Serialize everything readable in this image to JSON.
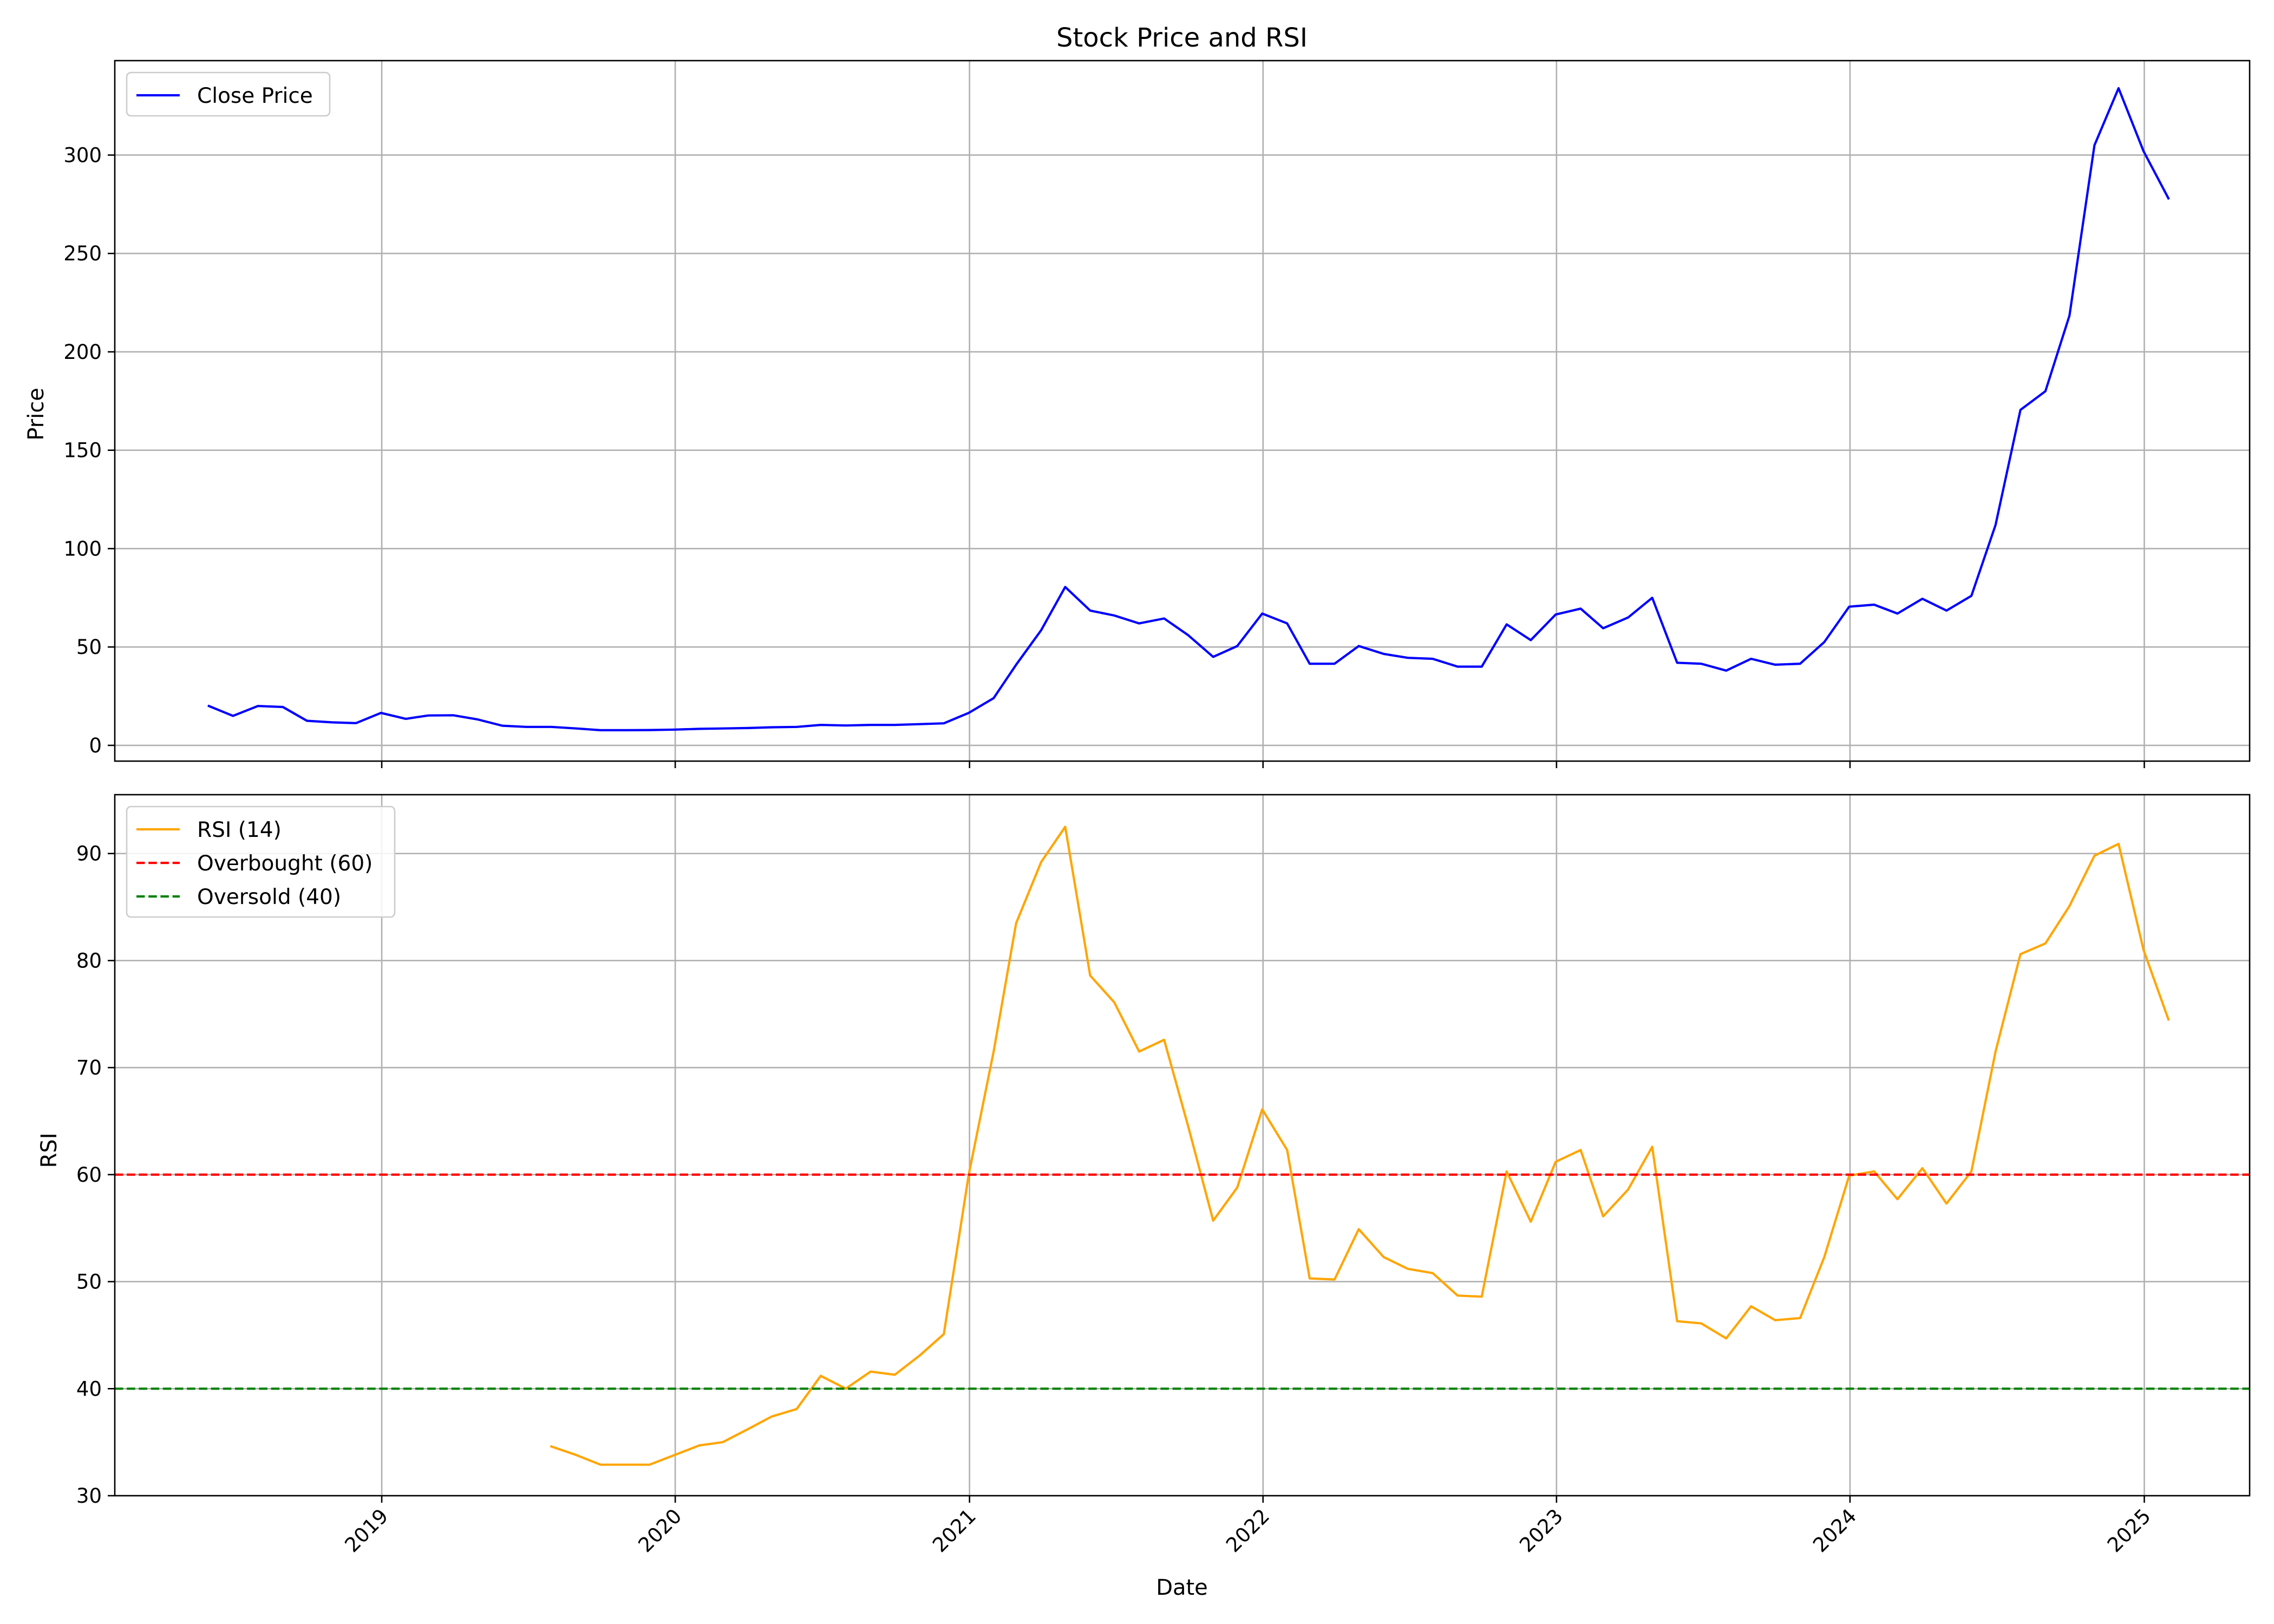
{
  "chart_data": [
    {
      "type": "line",
      "title": "Stock Price and RSI",
      "xlabel": "",
      "ylabel": "Price",
      "ylim": [
        -8,
        348
      ],
      "xlim": [
        "2018-02-03",
        "2025-05-12"
      ],
      "grid": true,
      "legend": "top-left",
      "yticks": [
        0,
        50,
        100,
        150,
        200,
        250,
        300
      ],
      "series": [
        {
          "name": "Close Price",
          "color": "#0000ff",
          "style": "solid",
          "x": [
            "2018-05-31",
            "2018-06-30",
            "2018-07-31",
            "2018-08-31",
            "2018-09-30",
            "2018-10-31",
            "2018-11-30",
            "2018-12-31",
            "2019-01-31",
            "2019-02-28",
            "2019-03-31",
            "2019-04-30",
            "2019-05-31",
            "2019-06-30",
            "2019-07-31",
            "2019-08-31",
            "2019-09-30",
            "2019-10-31",
            "2019-11-30",
            "2019-12-31",
            "2020-01-31",
            "2020-02-29",
            "2020-03-31",
            "2020-04-30",
            "2020-05-31",
            "2020-06-30",
            "2020-07-31",
            "2020-08-31",
            "2020-09-30",
            "2020-10-31",
            "2020-11-30",
            "2020-12-31",
            "2021-01-31",
            "2021-02-28",
            "2021-03-31",
            "2021-04-30",
            "2021-05-31",
            "2021-06-30",
            "2021-07-31",
            "2021-08-31",
            "2021-09-30",
            "2021-10-31",
            "2021-11-30",
            "2021-12-31",
            "2022-01-31",
            "2022-02-28",
            "2022-03-31",
            "2022-04-30",
            "2022-05-31",
            "2022-06-30",
            "2022-07-31",
            "2022-08-31",
            "2022-09-30",
            "2022-10-31",
            "2022-11-30",
            "2022-12-31",
            "2023-01-31",
            "2023-02-28",
            "2023-03-31",
            "2023-04-30",
            "2023-05-31",
            "2023-06-30",
            "2023-07-31",
            "2023-08-31",
            "2023-09-30",
            "2023-10-31",
            "2023-11-30",
            "2023-12-31",
            "2024-01-31",
            "2024-02-29",
            "2024-03-31",
            "2024-04-30",
            "2024-05-31",
            "2024-06-30",
            "2024-07-31",
            "2024-08-31",
            "2024-09-30",
            "2024-10-31",
            "2024-11-30",
            "2024-12-31",
            "2025-01-31"
          ],
          "values": [
            20,
            15,
            20,
            19.5,
            12.5,
            11.7,
            11.3,
            16.5,
            13.5,
            15.2,
            15.3,
            13.2,
            10,
            9.4,
            9.4,
            8.6,
            7.7,
            7.7,
            7.8,
            8,
            8.4,
            8.6,
            8.8,
            9.2,
            9.4,
            10.4,
            10.1,
            10.4,
            10.4,
            10.8,
            11.2,
            16.5,
            24,
            41,
            58.5,
            80.5,
            68.5,
            66,
            62,
            64.5,
            56,
            45,
            50.5,
            67,
            62,
            41.5,
            41.5,
            50.5,
            46.5,
            44.5,
            44,
            40,
            40,
            61.5,
            53.5,
            66.5,
            69.5,
            59.5,
            65,
            75,
            42,
            41.5,
            38,
            44,
            41,
            41.5,
            52.5,
            70.5,
            71.5,
            67,
            74.5,
            68.5,
            76,
            112,
            170.5,
            180,
            218.5,
            305,
            334,
            302,
            278
          ]
        }
      ]
    },
    {
      "type": "line",
      "title": "",
      "xlabel": "Date",
      "ylabel": "RSI",
      "ylim": [
        30,
        95.5
      ],
      "xlim": [
        "2018-02-03",
        "2025-05-12"
      ],
      "grid": true,
      "legend": "top-left",
      "yticks": [
        30,
        40,
        50,
        60,
        70,
        80,
        90
      ],
      "xticks": [
        "2019",
        "2020",
        "2021",
        "2022",
        "2023",
        "2024",
        "2025"
      ],
      "series": [
        {
          "name": "RSI (14)",
          "color": "#ffa500",
          "style": "solid",
          "x": [
            "2019-07-31",
            "2019-08-31",
            "2019-09-30",
            "2019-10-31",
            "2019-11-30",
            "2019-12-31",
            "2020-01-31",
            "2020-02-29",
            "2020-03-31",
            "2020-04-30",
            "2020-05-31",
            "2020-06-30",
            "2020-07-31",
            "2020-08-31",
            "2020-09-30",
            "2020-10-31",
            "2020-11-30",
            "2020-12-31",
            "2021-01-31",
            "2021-02-28",
            "2021-03-31",
            "2021-04-30",
            "2021-05-31",
            "2021-06-30",
            "2021-07-31",
            "2021-08-31",
            "2021-09-30",
            "2021-10-31",
            "2021-11-30",
            "2021-12-31",
            "2022-01-31",
            "2022-02-28",
            "2022-03-31",
            "2022-04-30",
            "2022-05-31",
            "2022-06-30",
            "2022-07-31",
            "2022-08-31",
            "2022-09-30",
            "2022-10-31",
            "2022-11-30",
            "2022-12-31",
            "2023-01-31",
            "2023-02-28",
            "2023-03-31",
            "2023-04-30",
            "2023-05-31",
            "2023-06-30",
            "2023-07-31",
            "2023-08-31",
            "2023-09-30",
            "2023-10-31",
            "2023-11-30",
            "2023-12-31",
            "2024-01-31",
            "2024-02-29",
            "2024-03-31",
            "2024-04-30",
            "2024-05-31",
            "2024-06-30",
            "2024-07-31",
            "2024-08-31",
            "2024-09-30",
            "2024-10-31",
            "2024-11-30",
            "2024-12-31",
            "2025-01-31"
          ],
          "values": [
            34.6,
            33.8,
            32.9,
            32.9,
            32.9,
            33.8,
            34.7,
            35,
            36.2,
            37.4,
            38.1,
            41.2,
            40,
            41.6,
            41.3,
            43.1,
            45.1,
            60,
            71.5,
            83.5,
            89.2,
            92.5,
            78.6,
            76.1,
            71.5,
            72.6,
            64.5,
            55.7,
            58.8,
            66.1,
            62.3,
            50.3,
            50.2,
            54.9,
            52.3,
            51.2,
            50.8,
            48.7,
            48.6,
            60.3,
            55.6,
            61.2,
            62.3,
            56.1,
            58.6,
            62.6,
            46.3,
            46.1,
            44.7,
            47.7,
            46.4,
            46.6,
            52.3,
            59.9,
            60.3,
            57.7,
            60.6,
            57.3,
            60.3,
            71.5,
            80.6,
            81.6,
            85.1,
            89.8,
            90.9,
            81,
            74.5
          ]
        },
        {
          "name": "Overbought (60)",
          "color": "#ff0000",
          "style": "dashed",
          "constant": 60
        },
        {
          "name": "Oversold (40)",
          "color": "#008000",
          "style": "dashed",
          "constant": 40
        }
      ]
    }
  ]
}
